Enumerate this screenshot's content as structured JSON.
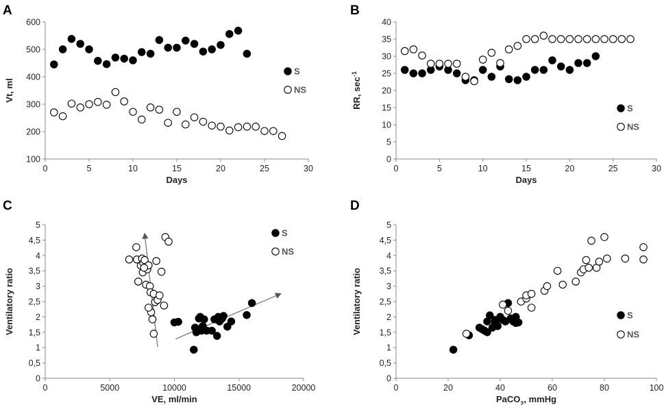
{
  "chart_data": [
    {
      "panel": "A",
      "type": "scatter",
      "title": "",
      "xlabel": "Days",
      "ylabel": "Vt, ml",
      "ylabel_sup": "",
      "xlim": [
        0,
        30
      ],
      "ylim": [
        100,
        600
      ],
      "xticks": [
        "0",
        "5",
        "10",
        "15",
        "20",
        "25",
        "30"
      ],
      "yticks": [
        "100",
        "200",
        "300",
        "400",
        "500",
        "600"
      ],
      "legend_position": "right",
      "series": [
        {
          "name": "S",
          "marker": "filled",
          "x": [
            1,
            2,
            3,
            4,
            5,
            6,
            7,
            8,
            9,
            10,
            11,
            12,
            13,
            14,
            15,
            16,
            17,
            18,
            19,
            20,
            21,
            22,
            23
          ],
          "y": [
            445,
            500,
            538,
            520,
            500,
            458,
            446,
            470,
            466,
            460,
            490,
            484,
            534,
            506,
            506,
            532,
            520,
            492,
            500,
            516,
            556,
            568,
            484
          ]
        },
        {
          "name": "NS",
          "marker": "open",
          "x": [
            1,
            2,
            3,
            4,
            5,
            6,
            7,
            8,
            9,
            10,
            11,
            12,
            13,
            14,
            15,
            16,
            17,
            18,
            19,
            20,
            21,
            22,
            23,
            24,
            25,
            26,
            27
          ],
          "y": [
            270,
            256,
            302,
            288,
            300,
            308,
            298,
            344,
            310,
            272,
            244,
            288,
            280,
            232,
            272,
            226,
            252,
            236,
            222,
            218,
            204,
            216,
            218,
            218,
            202,
            202,
            184
          ]
        }
      ]
    },
    {
      "panel": "B",
      "type": "scatter",
      "title": "",
      "xlabel": "Days",
      "ylabel": "RR, sec",
      "ylabel_sup": "-1",
      "xlim": [
        0,
        30
      ],
      "ylim": [
        0,
        40
      ],
      "xticks": [
        "0",
        "5",
        "10",
        "15",
        "20",
        "25",
        "30"
      ],
      "yticks": [
        "0",
        "5",
        "10",
        "15",
        "20",
        "25",
        "30",
        "35",
        "40"
      ],
      "legend_position": "bottom-right",
      "series": [
        {
          "name": "S",
          "marker": "filled",
          "x": [
            1,
            2,
            3,
            4,
            5,
            6,
            7,
            8,
            9,
            10,
            11,
            12,
            13,
            14,
            15,
            16,
            17,
            18,
            19,
            20,
            21,
            22,
            23
          ],
          "y": [
            26,
            25,
            25,
            26,
            27,
            26,
            25,
            23,
            23,
            26,
            24,
            27,
            23.3,
            23,
            24,
            26,
            26,
            28.8,
            27,
            26,
            28,
            28,
            30
          ]
        },
        {
          "name": "NS",
          "marker": "open",
          "x": [
            1,
            2,
            3,
            4,
            5,
            6,
            7,
            8,
            9,
            10,
            11,
            12,
            13,
            14,
            15,
            16,
            17,
            18,
            19,
            20,
            21,
            22,
            23,
            24,
            25,
            26,
            27
          ],
          "y": [
            31.5,
            32,
            30.2,
            27.8,
            27.8,
            27.8,
            27.8,
            24,
            22.7,
            29,
            31,
            28,
            32,
            33,
            35,
            35,
            36,
            35,
            35,
            35,
            35,
            35,
            35,
            35,
            35,
            35,
            35
          ]
        }
      ]
    },
    {
      "panel": "C",
      "type": "scatter",
      "title": "",
      "xlabel": "VE, ml/min",
      "ylabel": "Ventilatory ratio",
      "ylabel_sup": "",
      "xlim": [
        0,
        20000
      ],
      "ylim": [
        0,
        5
      ],
      "xticks": [
        "0",
        "5000",
        "10000",
        "15000",
        "20000"
      ],
      "yticks": [
        "0",
        "0,5",
        "1",
        "1,5",
        "2",
        "2,5",
        "3",
        "3,5",
        "4",
        "4,5",
        "5"
      ],
      "legend_position": "top-right",
      "series": [
        {
          "name": "S",
          "marker": "filled",
          "x": [
            10000,
            10300,
            11600,
            11700,
            11900,
            12000,
            12200,
            12300,
            11900,
            12100,
            12500,
            12900,
            13100,
            13300,
            13400,
            13500,
            13700,
            13800,
            14100,
            14400,
            15600,
            16000,
            11500
          ],
          "y": [
            1.82,
            1.84,
            1.65,
            1.5,
            1.95,
            2.0,
            1.7,
            1.92,
            1.6,
            1.55,
            1.55,
            1.55,
            1.92,
            1.38,
            2.0,
            1.85,
            1.95,
            2.03,
            1.68,
            1.85,
            2.06,
            2.45,
            0.93
          ]
        },
        {
          "name": "NS",
          "marker": "open",
          "x": [
            6500,
            7050,
            7100,
            7200,
            7400,
            7500,
            7550,
            7600,
            7700,
            7800,
            7900,
            8000,
            8100,
            8150,
            8200,
            8300,
            8400,
            8500,
            8600,
            8700,
            8850,
            9000,
            9200,
            9300,
            9550,
            7650,
            8000,
            8400
          ],
          "y": [
            3.87,
            4.27,
            3.87,
            3.15,
            3.67,
            3.9,
            3.45,
            3.75,
            3.85,
            3.05,
            3.55,
            3.68,
            3.0,
            2.8,
            2.15,
            1.92,
            2.75,
            2.48,
            3.82,
            2.55,
            2.7,
            3.47,
            2.37,
            4.6,
            4.45,
            3.6,
            2.3,
            1.45
          ]
        }
      ],
      "trendlines": [
        {
          "series": "S",
          "from": [
            10100,
            1.28
          ],
          "to": [
            18200,
            2.75
          ]
        },
        {
          "series": "NS",
          "from": [
            8700,
            1.02
          ],
          "to": [
            7700,
            4.7
          ]
        }
      ]
    },
    {
      "panel": "D",
      "type": "scatter",
      "title": "",
      "xlabel": "PaCO",
      "xlabel_sub": "2",
      "xlabel_suffix": ", mmHg",
      "ylabel": "Ventilatory ratio",
      "ylabel_sup": "",
      "xlim": [
        0,
        100
      ],
      "ylim": [
        0,
        5
      ],
      "xticks": [
        "0",
        "20",
        "40",
        "60",
        "80",
        "100"
      ],
      "yticks": [
        "0",
        "0,5",
        "1",
        "1,5",
        "2",
        "2,5",
        "3",
        "3,5",
        "4",
        "4,5",
        "5"
      ],
      "legend_position": "bottom-right",
      "series": [
        {
          "name": "S",
          "marker": "filled",
          "x": [
            22,
            28,
            32,
            33,
            34,
            35,
            35,
            36,
            37,
            38,
            38,
            39,
            40,
            40,
            41,
            42,
            43,
            44,
            45,
            45,
            46,
            46,
            47
          ],
          "y": [
            0.93,
            1.4,
            1.65,
            1.6,
            1.55,
            1.5,
            1.85,
            2.05,
            1.65,
            1.9,
            1.8,
            1.7,
            1.95,
            2.0,
            1.9,
            1.85,
            2.45,
            1.95,
            1.85,
            1.9,
            2.0,
            1.8,
            1.82
          ]
        },
        {
          "name": "NS",
          "marker": "open",
          "x": [
            27,
            41,
            43,
            48,
            50,
            50,
            52,
            52,
            57,
            58,
            62,
            64,
            69,
            71,
            72,
            73,
            74,
            75,
            77,
            78,
            80,
            81,
            88,
            95,
            95
          ],
          "y": [
            1.45,
            2.4,
            2.2,
            2.5,
            2.6,
            2.7,
            2.75,
            2.3,
            2.85,
            3.0,
            3.5,
            3.05,
            3.15,
            3.45,
            3.55,
            3.85,
            3.6,
            4.48,
            3.6,
            3.8,
            4.6,
            3.9,
            3.9,
            3.87,
            4.27
          ]
        }
      ]
    }
  ]
}
